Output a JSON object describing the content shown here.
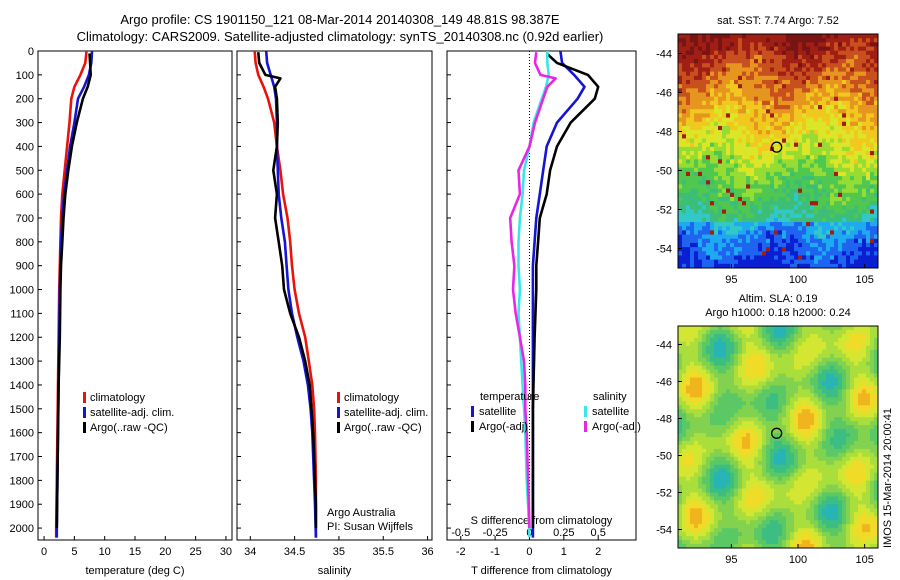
{
  "header": {
    "line1": "Argo profile: CS 1901150_121 08-Mar-2014 20140308_149 48.81S 98.387E",
    "line2": "Climatology: CARS2009. Satellite-adjusted climatology: synTS_20140308.nc (0.92d earlier)"
  },
  "colors": {
    "climatology": "#e8140c",
    "satellite": "#1414d2",
    "argo": "#000000",
    "sat_salinity": "#3ce6e6",
    "argo_salinity": "#e628e6"
  },
  "chart_data": [
    {
      "type": "line",
      "xlabel": "temperature (deg C)",
      "ylabel": "",
      "xlim": [
        -1,
        31
      ],
      "ylim": [
        2050,
        0
      ],
      "xticks": [
        0,
        5,
        10,
        15,
        20,
        25,
        30
      ],
      "yticks": [
        0,
        100,
        200,
        300,
        400,
        500,
        600,
        700,
        800,
        900,
        1000,
        1100,
        1200,
        1300,
        1400,
        1500,
        1600,
        1700,
        1800,
        1900,
        2000
      ],
      "legend": [
        "climatology",
        "satellite-adj. clim.",
        "Argo(..raw -QC)"
      ],
      "series": [
        {
          "name": "climatology",
          "color": "#e8140c",
          "points": [
            [
              7.0,
              0
            ],
            [
              6.8,
              50
            ],
            [
              6.0,
              100
            ],
            [
              5.0,
              150
            ],
            [
              4.5,
              200
            ],
            [
              4.2,
              300
            ],
            [
              3.8,
              400
            ],
            [
              3.4,
              500
            ],
            [
              3.0,
              600
            ],
            [
              2.8,
              700
            ],
            [
              2.7,
              800
            ],
            [
              2.6,
              900
            ],
            [
              2.5,
              1000
            ],
            [
              2.4,
              1200
            ],
            [
              2.3,
              1400
            ],
            [
              2.2,
              1600
            ],
            [
              2.1,
              1800
            ],
            [
              2.0,
              2000
            ],
            [
              2.0,
              2040
            ]
          ]
        },
        {
          "name": "satellite-adj. clim.",
          "color": "#1414d2",
          "points": [
            [
              7.9,
              0
            ],
            [
              7.8,
              50
            ],
            [
              7.4,
              100
            ],
            [
              6.6,
              150
            ],
            [
              5.6,
              200
            ],
            [
              5.0,
              300
            ],
            [
              4.3,
              400
            ],
            [
              3.8,
              500
            ],
            [
              3.3,
              600
            ],
            [
              3.0,
              700
            ],
            [
              2.8,
              800
            ],
            [
              2.7,
              900
            ],
            [
              2.6,
              1000
            ],
            [
              2.5,
              1200
            ],
            [
              2.4,
              1400
            ],
            [
              2.3,
              1600
            ],
            [
              2.2,
              1800
            ],
            [
              2.1,
              2000
            ],
            [
              2.1,
              2040
            ]
          ]
        },
        {
          "name": "Argo(..raw -QC)",
          "color": "#000000",
          "points": [
            [
              7.5,
              10
            ],
            [
              7.6,
              50
            ],
            [
              7.7,
              100
            ],
            [
              7.2,
              150
            ],
            [
              6.4,
              200
            ],
            [
              5.4,
              300
            ],
            [
              4.6,
              400
            ],
            [
              4.0,
              500
            ],
            [
              3.5,
              600
            ],
            [
              3.2,
              700
            ],
            [
              3.0,
              800
            ],
            [
              2.8,
              900
            ],
            [
              2.7,
              1000
            ],
            [
              2.6,
              1200
            ],
            [
              2.4,
              1400
            ],
            [
              2.3,
              1600
            ],
            [
              2.2,
              1800
            ],
            [
              2.1,
              2000
            ]
          ]
        }
      ]
    },
    {
      "type": "line",
      "xlabel": "salinity",
      "ylabel": "",
      "xlim": [
        33.85,
        36.05
      ],
      "ylim": [
        2050,
        0
      ],
      "xticks": [
        34,
        34.5,
        35,
        35.5,
        36
      ],
      "legend": [
        "climatology",
        "satellite-adj. clim.",
        "Argo(..raw -QC)"
      ],
      "annotation": [
        "Argo Australia",
        "PI: Susan Wijffels"
      ],
      "series": [
        {
          "name": "climatology",
          "color": "#e8140c",
          "points": [
            [
              34.05,
              0
            ],
            [
              34.06,
              50
            ],
            [
              34.09,
              100
            ],
            [
              34.15,
              150
            ],
            [
              34.2,
              200
            ],
            [
              34.27,
              300
            ],
            [
              34.3,
              400
            ],
            [
              34.34,
              500
            ],
            [
              34.37,
              600
            ],
            [
              34.42,
              700
            ],
            [
              34.45,
              800
            ],
            [
              34.47,
              900
            ],
            [
              34.5,
              1000
            ],
            [
              34.55,
              1100
            ],
            [
              34.62,
              1200
            ],
            [
              34.66,
              1300
            ],
            [
              34.7,
              1400
            ],
            [
              34.72,
              1500
            ],
            [
              34.73,
              1600
            ],
            [
              34.74,
              1800
            ],
            [
              34.74,
              1900
            ],
            [
              34.74,
              2040
            ]
          ]
        },
        {
          "name": "satellite-adj. clim.",
          "color": "#1414d2",
          "points": [
            [
              34.18,
              0
            ],
            [
              34.19,
              50
            ],
            [
              34.23,
              100
            ],
            [
              34.27,
              150
            ],
            [
              34.29,
              200
            ],
            [
              34.3,
              300
            ],
            [
              34.3,
              400
            ],
            [
              34.31,
              500
            ],
            [
              34.32,
              600
            ],
            [
              34.35,
              700
            ],
            [
              34.39,
              800
            ],
            [
              34.41,
              900
            ],
            [
              34.43,
              1000
            ],
            [
              34.47,
              1100
            ],
            [
              34.53,
              1200
            ],
            [
              34.6,
              1300
            ],
            [
              34.65,
              1400
            ],
            [
              34.68,
              1500
            ],
            [
              34.7,
              1600
            ],
            [
              34.72,
              1800
            ],
            [
              34.73,
              1900
            ],
            [
              34.74,
              2040
            ]
          ]
        },
        {
          "name": "Argo(..raw -QC)",
          "color": "#000000",
          "points": [
            [
              34.09,
              5
            ],
            [
              34.1,
              50
            ],
            [
              34.17,
              100
            ],
            [
              34.34,
              115
            ],
            [
              34.28,
              150
            ],
            [
              34.3,
              200
            ],
            [
              34.31,
              300
            ],
            [
              34.3,
              400
            ],
            [
              34.26,
              500
            ],
            [
              34.3,
              600
            ],
            [
              34.28,
              700
            ],
            [
              34.32,
              800
            ],
            [
              34.36,
              900
            ],
            [
              34.38,
              1000
            ],
            [
              34.45,
              1100
            ],
            [
              34.55,
              1200
            ],
            [
              34.62,
              1300
            ],
            [
              34.67,
              1400
            ],
            [
              34.69,
              1500
            ],
            [
              34.71,
              1600
            ],
            [
              34.73,
              1800
            ],
            [
              34.74,
              1900
            ],
            [
              34.74,
              2000
            ]
          ]
        }
      ]
    },
    {
      "type": "line",
      "xlabel": "T difference from climatology",
      "ylabel": "",
      "xlim": [
        -2.4,
        3.1
      ],
      "ylim": [
        2050,
        0
      ],
      "xticks": [
        -2,
        -1,
        0,
        1,
        2
      ],
      "secondary_axis": {
        "label": "S difference from climatology",
        "ticks": [
          "-0.5",
          "-0.25",
          "0",
          "0.25",
          "0.5"
        ],
        "values": [
          -0.5,
          -0.25,
          0,
          0.25,
          0.5
        ]
      },
      "legend_headers": [
        "temperature",
        "salinity"
      ],
      "legend": [
        "satellite",
        "Argo(-adj)",
        "satellite",
        "Argo(-adj)"
      ],
      "series": [
        {
          "name": "satellite",
          "quantity": "temperature",
          "color": "#1414d2",
          "points": [
            [
              0.9,
              0
            ],
            [
              0.95,
              50
            ],
            [
              1.3,
              100
            ],
            [
              1.6,
              150
            ],
            [
              1.4,
              200
            ],
            [
              0.8,
              300
            ],
            [
              0.5,
              400
            ],
            [
              0.4,
              500
            ],
            [
              0.3,
              600
            ],
            [
              0.2,
              700
            ],
            [
              0.15,
              800
            ],
            [
              0.1,
              900
            ],
            [
              0.1,
              1000
            ],
            [
              0.1,
              1200
            ],
            [
              0.1,
              1500
            ],
            [
              0.1,
              1800
            ],
            [
              0.1,
              2040
            ]
          ]
        },
        {
          "name": "Argo(-adj)",
          "quantity": "temperature",
          "color": "#000000",
          "points": [
            [
              0.5,
              10
            ],
            [
              0.8,
              50
            ],
            [
              1.7,
              100
            ],
            [
              2.0,
              150
            ],
            [
              1.9,
              200
            ],
            [
              1.2,
              300
            ],
            [
              0.8,
              400
            ],
            [
              0.6,
              500
            ],
            [
              0.5,
              600
            ],
            [
              0.3,
              700
            ],
            [
              0.25,
              800
            ],
            [
              0.2,
              900
            ],
            [
              0.2,
              1000
            ],
            [
              0.15,
              1200
            ],
            [
              0.1,
              1500
            ],
            [
              0.1,
              1800
            ],
            [
              0.1,
              2000
            ]
          ]
        },
        {
          "name": "satellite",
          "quantity": "salinity",
          "color": "#3ce6e6",
          "points": [
            [
              0.13,
              0
            ],
            [
              0.13,
              50
            ],
            [
              0.14,
              100
            ],
            [
              0.12,
              150
            ],
            [
              0.09,
              200
            ],
            [
              0.03,
              300
            ],
            [
              0.0,
              400
            ],
            [
              -0.04,
              500
            ],
            [
              -0.05,
              600
            ],
            [
              -0.07,
              700
            ],
            [
              -0.08,
              800
            ],
            [
              -0.08,
              900
            ],
            [
              -0.07,
              1000
            ],
            [
              -0.08,
              1100
            ],
            [
              -0.07,
              1200
            ],
            [
              -0.06,
              1300
            ],
            [
              -0.05,
              1400
            ],
            [
              -0.04,
              1500
            ],
            [
              -0.03,
              1600
            ],
            [
              -0.02,
              1800
            ],
            [
              -0.01,
              1900
            ],
            [
              0.0,
              2040
            ]
          ]
        },
        {
          "name": "Argo(-adj)",
          "quantity": "salinity",
          "color": "#e628e6",
          "points": [
            [
              0.05,
              5
            ],
            [
              0.04,
              50
            ],
            [
              0.08,
              100
            ],
            [
              0.19,
              115
            ],
            [
              0.13,
              150
            ],
            [
              0.1,
              200
            ],
            [
              0.04,
              300
            ],
            [
              0.0,
              400
            ],
            [
              -0.08,
              500
            ],
            [
              -0.07,
              600
            ],
            [
              -0.14,
              700
            ],
            [
              -0.13,
              800
            ],
            [
              -0.11,
              900
            ],
            [
              -0.12,
              1000
            ],
            [
              -0.1,
              1100
            ],
            [
              -0.07,
              1200
            ],
            [
              -0.04,
              1300
            ],
            [
              -0.03,
              1400
            ],
            [
              -0.03,
              1500
            ],
            [
              -0.02,
              1600
            ],
            [
              -0.01,
              1800
            ],
            [
              0.0,
              2000
            ]
          ]
        }
      ]
    },
    {
      "type": "heatmap",
      "title": "sat. SST: 7.74 Argo: 7.52",
      "xlim": [
        91,
        106
      ],
      "ylim": [
        -55,
        -43
      ],
      "xticks": [
        95,
        100,
        105
      ],
      "yticks": [
        -44,
        -46,
        -48,
        -50,
        -52,
        -54
      ],
      "marker": [
        98.4,
        -48.8
      ]
    },
    {
      "type": "heatmap",
      "title": "Altim. SLA: 0.19",
      "subtitle": "Argo h1000: 0.18 h2000: 0.24",
      "xlim": [
        91,
        106
      ],
      "ylim": [
        -55,
        -43
      ],
      "xticks": [
        95,
        100,
        105
      ],
      "yticks": [
        -44,
        -46,
        -48,
        -50,
        -52,
        -54
      ],
      "marker": [
        98.4,
        -48.8
      ]
    }
  ],
  "side_label": "IMOS 15-Mar-2014 20:00:41"
}
